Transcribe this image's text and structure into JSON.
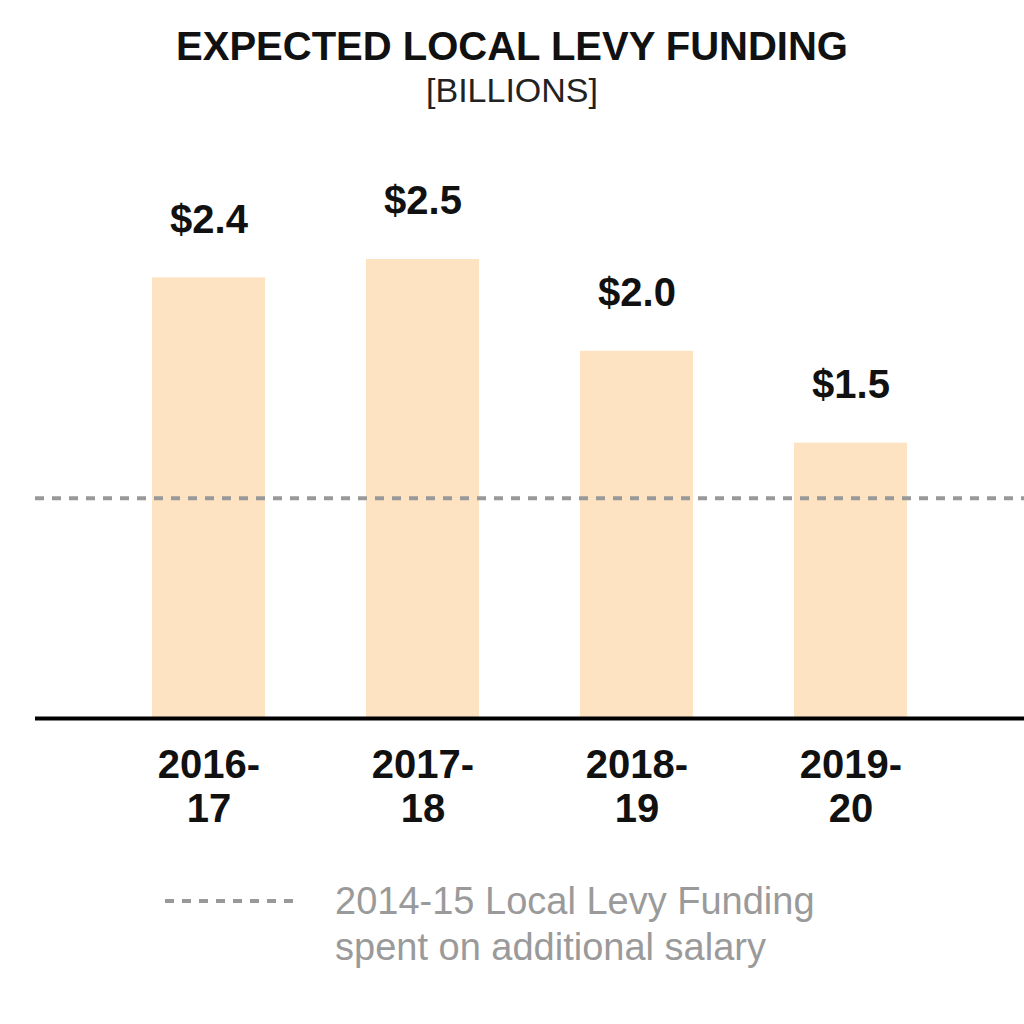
{
  "chart_data": {
    "type": "bar",
    "title": "EXPECTED LOCAL LEVY FUNDING",
    "subtitle": "[BILLIONS]",
    "categories": [
      "2016-17",
      "2017-18",
      "2018-19",
      "2019-20"
    ],
    "values": [
      2.4,
      2.5,
      2.0,
      1.5
    ],
    "value_labels": [
      "$2.4",
      "$2.5",
      "$2.0",
      "$1.5"
    ],
    "color": "#fde3c2",
    "ylim": [
      0,
      2.5
    ],
    "grid": false,
    "data_labels": true,
    "tick_labels": "x",
    "reference_line": {
      "value": 1.2,
      "label": "2014-15 Local Levy Funding spent on additional salary",
      "line_style": "dashed",
      "color": "#999999"
    }
  }
}
